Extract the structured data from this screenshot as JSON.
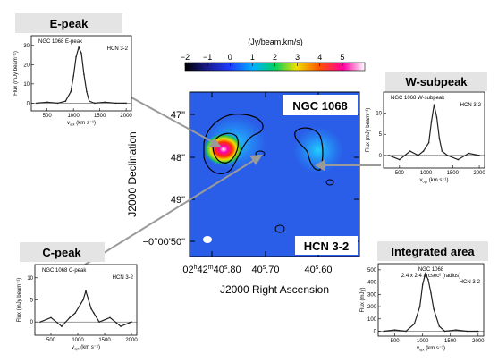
{
  "chart_data": [
    {
      "type": "heatmap",
      "name": "map",
      "colorbar": {
        "unit": "(Jy/beam.km/s)",
        "ticks": [
          -2,
          -1,
          0,
          1,
          2,
          3,
          4,
          5
        ],
        "range": [
          -2,
          6
        ]
      },
      "title": "NGC 1068",
      "line_label": "HCN 3-2",
      "xlabel": "J2000 Right Ascension",
      "ylabel": "J2000 Declination",
      "xticks": [
        "02h42m40s.80",
        "40s.70",
        "40s.60"
      ],
      "yticks": [
        "47\"",
        "48\"",
        "49\"",
        "−0°00'50\""
      ],
      "tick_labels": {
        "ra_main": "02",
        "ra_h_sup": "h",
        "ra_min": "42",
        "ra_m_sup": "m",
        "ra_sec_a": "40",
        "ra_s_sup": "s",
        "ra_frac_a": ".80",
        "ra_mid_sec": "40",
        "ra_mid_frac": ".70",
        "ra_last_sec": "40",
        "ra_last_frac": ".60",
        "dec_47": "47\"",
        "dec_48": "48\"",
        "dec_49": "49\"",
        "dec_50": "−0°00'50\""
      }
    },
    {
      "type": "line",
      "name": "e-peak",
      "title": "E-peak",
      "inner_title": "NGC 1068 E-peak",
      "line": "HCN 3-2",
      "ylabel": "Flux (mJy beam⁻¹)",
      "xlabel": "v",
      "xlabel_sub": "opt",
      "xlabel_unit": "(km s⁻¹)",
      "xticks": [
        500,
        1000,
        1500,
        2000
      ],
      "yticks": [
        0,
        10,
        20,
        30
      ],
      "xlim": [
        200,
        2100
      ],
      "ylim": [
        -4,
        35
      ],
      "x": [
        300,
        500,
        700,
        850,
        950,
        1000,
        1050,
        1100,
        1150,
        1200,
        1250,
        1300,
        1400,
        1600,
        1800,
        2000
      ],
      "values": [
        0,
        0.5,
        0,
        1,
        6,
        14,
        24,
        29,
        26,
        15,
        6,
        1,
        0,
        0.5,
        0,
        0
      ]
    },
    {
      "type": "line",
      "name": "w-subpeak",
      "title": "W-subpeak",
      "inner_title": "NGC 1068 W-subpeak",
      "line": "HCN 3-2",
      "ylabel": "Flux (mJy beam⁻¹)",
      "xlabel": "v",
      "xlabel_sub": "opt",
      "xlabel_unit": "(km s⁻¹)",
      "xticks": [
        500,
        1000,
        1500,
        2000
      ],
      "yticks": [
        0,
        5,
        10
      ],
      "xlim": [
        200,
        2100
      ],
      "ylim": [
        -3,
        15
      ],
      "x": [
        300,
        500,
        700,
        850,
        950,
        1050,
        1100,
        1150,
        1200,
        1250,
        1300,
        1400,
        1600,
        1800,
        2000
      ],
      "values": [
        0,
        -1,
        1,
        0,
        1,
        3,
        8,
        12,
        9,
        4,
        1,
        0,
        -1,
        0.5,
        0
      ]
    },
    {
      "type": "line",
      "name": "c-peak",
      "title": "C-peak",
      "inner_title": "NGC 1068 C-peak",
      "line": "HCN 3-2",
      "ylabel": "Flux (mJy beam⁻¹)",
      "xlabel": "v",
      "xlabel_sub": "opt",
      "xlabel_unit": "(km s⁻¹)",
      "xticks": [
        500,
        1000,
        1500,
        2000
      ],
      "yticks": [
        0,
        5,
        10
      ],
      "xlim": [
        200,
        2100
      ],
      "ylim": [
        -3,
        13
      ],
      "x": [
        300,
        500,
        700,
        850,
        950,
        1050,
        1100,
        1150,
        1200,
        1250,
        1300,
        1400,
        1600,
        1800,
        2000
      ],
      "values": [
        0,
        1,
        -1,
        1,
        2,
        4,
        5,
        7,
        5,
        3,
        2,
        0,
        1,
        -1,
        0
      ]
    },
    {
      "type": "line",
      "name": "integrated-area",
      "title": "Integrated area",
      "inner_title": "NGC 1068",
      "inner_subtitle": "2.4 x 2.4 arcsec² (radius)",
      "line": "HCN 3-2",
      "ylabel": "Flux (mJy)",
      "xlabel": "v",
      "xlabel_sub": "opt",
      "xlabel_unit": "(km s⁻¹)",
      "xticks": [
        500,
        1000,
        1500,
        2000
      ],
      "yticks": [
        0,
        100,
        200,
        300,
        400,
        500
      ],
      "xlim": [
        200,
        2100
      ],
      "ylim": [
        -40,
        550
      ],
      "x": [
        300,
        500,
        700,
        850,
        950,
        1000,
        1050,
        1100,
        1150,
        1200,
        1300,
        1400,
        1600,
        1800,
        2000
      ],
      "values": [
        0,
        10,
        0,
        60,
        200,
        380,
        470,
        420,
        310,
        180,
        40,
        0,
        10,
        0,
        0
      ]
    }
  ]
}
